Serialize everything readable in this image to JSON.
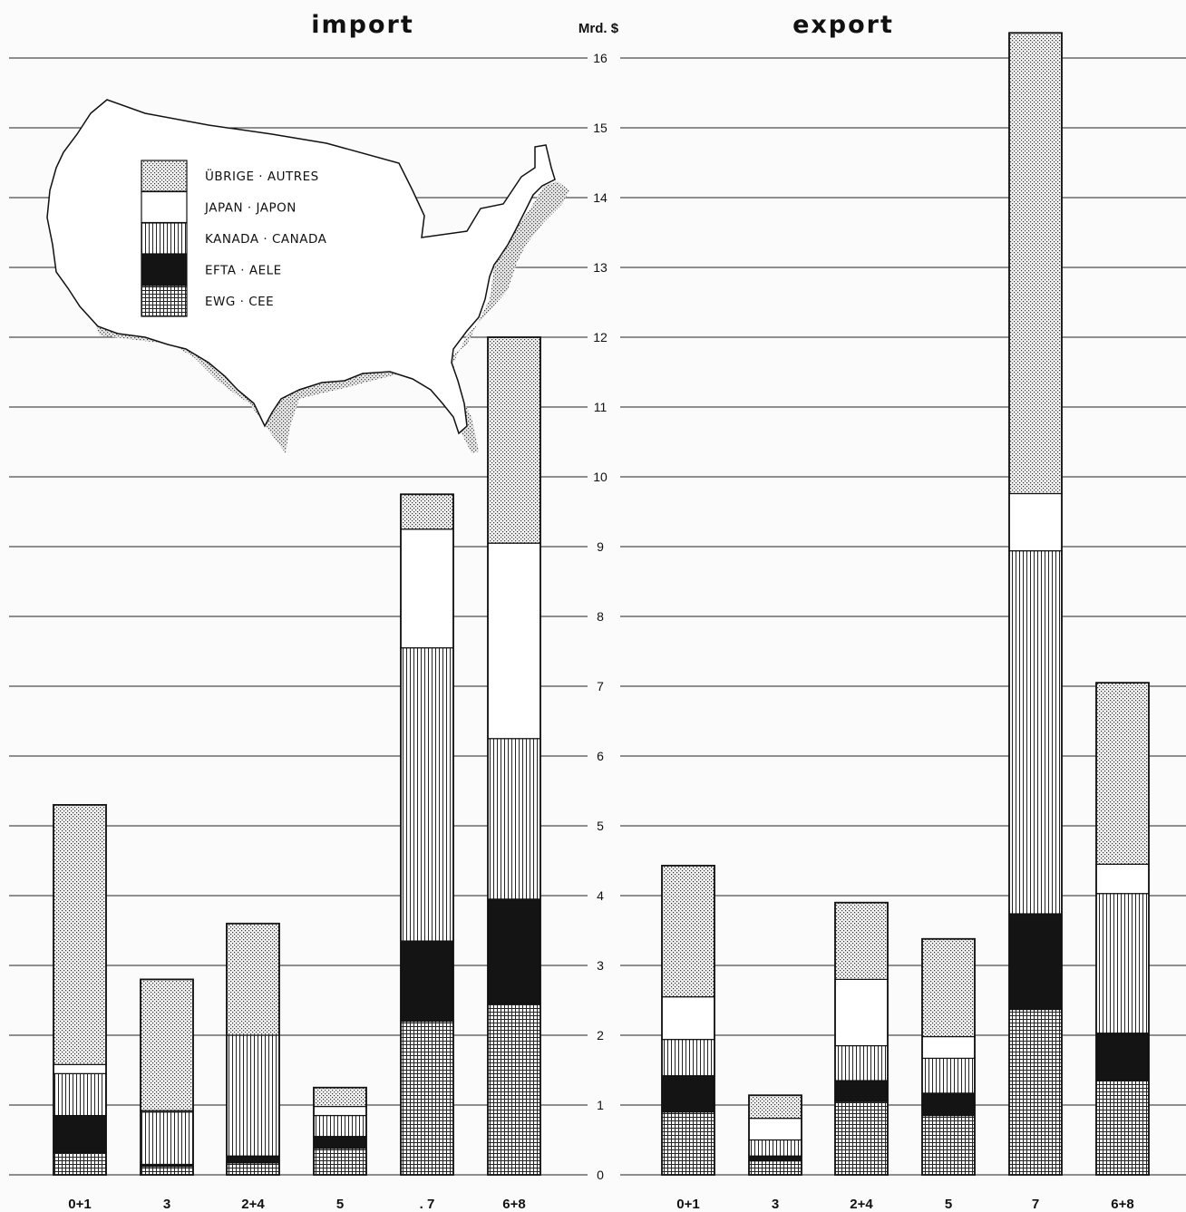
{
  "titles": {
    "import": "import",
    "export": "export"
  },
  "unit_label": "Mrd. $",
  "legend": [
    {
      "label": "ÜBRIGE · AUTRES",
      "key": "uebrige"
    },
    {
      "label": "JAPAN · JAPON",
      "key": "japan"
    },
    {
      "label": "KANADA · CANADA",
      "key": "kanada"
    },
    {
      "label": "EFTA · AELE",
      "key": "efta"
    },
    {
      "label": "EWG · CEE",
      "key": "ewg"
    }
  ],
  "colors": {
    "background": "#fbfbfb",
    "ink": "#111111",
    "white": "#ffffff",
    "grid": "#222222",
    "map_shadow": "#d9d9d9"
  },
  "chart_data": [
    {
      "type": "bar",
      "stacked": true,
      "title": "import",
      "ylabel": "Mrd. $",
      "ylim": [
        0,
        16
      ],
      "yticks": [
        0,
        1,
        2,
        3,
        4,
        5,
        6,
        7,
        8,
        9,
        10,
        11,
        12,
        13,
        14,
        15,
        16
      ],
      "grid": true,
      "categories": [
        "0+1",
        "3",
        "2+4",
        "5",
        ". 7",
        "6+8"
      ],
      "series": [
        {
          "name": "EWG · CEE",
          "key": "ewg",
          "values": [
            0.32,
            0.12,
            0.17,
            0.38,
            2.2,
            2.45
          ]
        },
        {
          "name": "EFTA · AELE",
          "key": "efta",
          "values": [
            0.53,
            0.03,
            0.1,
            0.17,
            1.15,
            1.5
          ]
        },
        {
          "name": "KANADA · CANADA",
          "key": "kanada",
          "values": [
            0.6,
            0.75,
            1.73,
            0.3,
            4.2,
            2.3
          ]
        },
        {
          "name": "JAPAN · JAPON",
          "key": "japan",
          "values": [
            0.13,
            0.02,
            0.0,
            0.13,
            1.7,
            2.8
          ]
        },
        {
          "name": "ÜBRIGE · AUTRES",
          "key": "uebrige",
          "values": [
            3.72,
            1.88,
            1.6,
            0.27,
            0.5,
            2.95
          ]
        }
      ]
    },
    {
      "type": "bar",
      "stacked": true,
      "title": "export",
      "ylabel": "Mrd. $",
      "ylim": [
        0,
        16
      ],
      "yticks": [
        0,
        1,
        2,
        3,
        4,
        5,
        6,
        7,
        8,
        9,
        10,
        11,
        12,
        13,
        14,
        15,
        16
      ],
      "grid": true,
      "categories": [
        "0+1",
        "3",
        "2+4",
        "5",
        "7",
        "6+8"
      ],
      "series": [
        {
          "name": "EWG · CEE",
          "key": "ewg",
          "values": [
            0.9,
            0.2,
            1.05,
            0.85,
            2.37,
            1.35
          ]
        },
        {
          "name": "EFTA · AELE",
          "key": "efta",
          "values": [
            0.52,
            0.07,
            0.3,
            0.32,
            1.37,
            0.68
          ]
        },
        {
          "name": "KANADA · CANADA",
          "key": "kanada",
          "values": [
            0.52,
            0.23,
            0.5,
            0.5,
            5.2,
            2.0
          ]
        },
        {
          "name": "JAPAN · JAPON",
          "key": "japan",
          "values": [
            0.61,
            0.31,
            0.95,
            0.31,
            0.82,
            0.42
          ]
        },
        {
          "name": "ÜBRIGE · AUTRES",
          "key": "uebrige",
          "values": [
            1.88,
            0.33,
            1.1,
            1.4,
            6.6,
            2.6
          ]
        }
      ]
    }
  ]
}
